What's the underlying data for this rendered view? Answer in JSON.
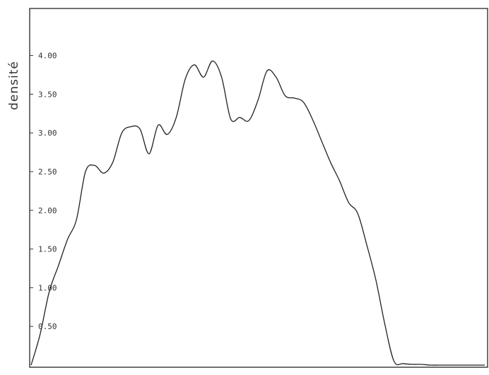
{
  "chart_data": {
    "type": "line",
    "title": "",
    "xlabel": "",
    "ylabel": "densité",
    "ylim": [
      0,
      4.25
    ],
    "y_ticks": [
      {
        "value": 0.5,
        "label": "0.50"
      },
      {
        "value": 1.0,
        "label": "1.00"
      },
      {
        "value": 1.5,
        "label": "1.50"
      },
      {
        "value": 2.0,
        "label": "2.00"
      },
      {
        "value": 2.5,
        "label": "2.50"
      },
      {
        "value": 3.0,
        "label": "3.00"
      },
      {
        "value": 3.5,
        "label": "3.50"
      },
      {
        "value": 4.0,
        "label": "4.00"
      }
    ],
    "grid": false,
    "line_color": "#222222",
    "series": [
      {
        "x": [
          0,
          2,
          4,
          6,
          8,
          10,
          12,
          14,
          16,
          18,
          20,
          22,
          24,
          26,
          28,
          30,
          32,
          34,
          36,
          38,
          40,
          42,
          44,
          46,
          48,
          50,
          52,
          54,
          56,
          58,
          60,
          62,
          64,
          66,
          68,
          70,
          72,
          74,
          76,
          78,
          80,
          82,
          84,
          86,
          88,
          90,
          92,
          94,
          96,
          98,
          100
        ],
        "y": [
          0.0,
          0.4,
          0.95,
          1.28,
          1.62,
          1.88,
          2.5,
          2.58,
          2.48,
          2.62,
          3.0,
          3.08,
          3.05,
          2.73,
          3.1,
          2.98,
          3.2,
          3.7,
          3.88,
          3.72,
          3.93,
          3.72,
          3.18,
          3.2,
          3.16,
          3.42,
          3.8,
          3.72,
          3.48,
          3.45,
          3.4,
          3.18,
          2.9,
          2.62,
          2.38,
          2.1,
          1.96,
          1.55,
          1.1,
          0.52,
          0.05,
          0.02,
          0.01,
          0.01,
          0.0,
          0.0,
          0.0,
          0.0,
          0.0,
          0.0,
          0.0
        ]
      }
    ]
  }
}
